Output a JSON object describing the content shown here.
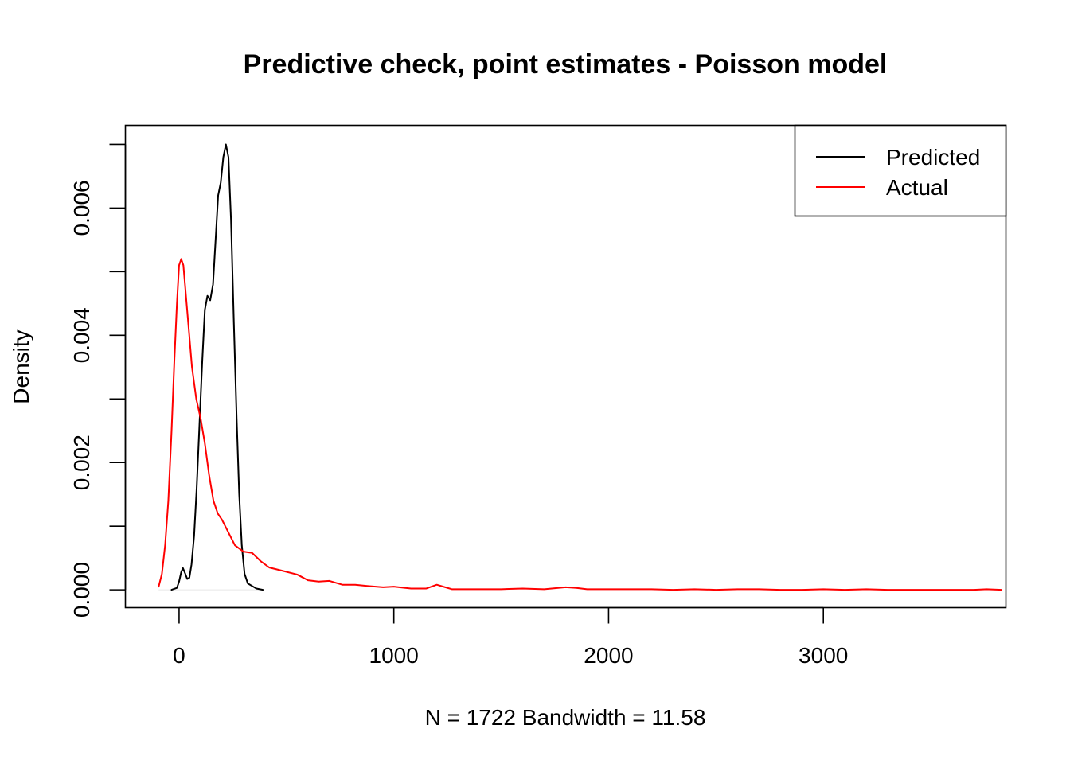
{
  "chart_data": {
    "type": "line",
    "title": "Predictive check, point estimates - Poisson model",
    "xlabel": "N = 1722   Bandwidth = 11.58",
    "ylabel": "Density",
    "xlim": [
      -250,
      3850
    ],
    "ylim": [
      -0.00028,
      0.0073
    ],
    "x_ticks": [
      0,
      1000,
      2000,
      3000
    ],
    "x_tick_labels": [
      "0",
      "1000",
      "2000",
      "3000"
    ],
    "y_ticks": [
      0,
      0.001,
      0.002,
      0.003,
      0.004,
      0.005,
      0.006,
      0.007
    ],
    "y_tick_labels": [
      "0.000",
      "",
      "0.002",
      "",
      "0.004",
      "",
      "0.006",
      ""
    ],
    "grid": false,
    "legend_position": "top-right",
    "series": [
      {
        "name": "Predicted",
        "color": "#000000",
        "points": [
          [
            -35,
            0
          ],
          [
            -10,
            3e-05
          ],
          [
            0,
            0.00013
          ],
          [
            10,
            0.00028
          ],
          [
            18,
            0.00034
          ],
          [
            28,
            0.00026
          ],
          [
            38,
            0.00017
          ],
          [
            48,
            0.00019
          ],
          [
            58,
            0.0004
          ],
          [
            70,
            0.00085
          ],
          [
            82,
            0.0016
          ],
          [
            95,
            0.0026
          ],
          [
            108,
            0.0036
          ],
          [
            120,
            0.0044
          ],
          [
            132,
            0.00462
          ],
          [
            145,
            0.00455
          ],
          [
            158,
            0.0048
          ],
          [
            170,
            0.0055
          ],
          [
            182,
            0.0062
          ],
          [
            194,
            0.0064
          ],
          [
            206,
            0.0068
          ],
          [
            218,
            0.007
          ],
          [
            230,
            0.0068
          ],
          [
            242,
            0.0058
          ],
          [
            255,
            0.0042
          ],
          [
            268,
            0.0027
          ],
          [
            280,
            0.0015
          ],
          [
            292,
            0.0007
          ],
          [
            305,
            0.00025
          ],
          [
            320,
            0.0001
          ],
          [
            340,
            6e-05
          ],
          [
            360,
            2e-05
          ],
          [
            390,
            0
          ]
        ]
      },
      {
        "name": "Actual",
        "color": "#ff0000",
        "points": [
          [
            -95,
            5e-05
          ],
          [
            -80,
            0.00025
          ],
          [
            -65,
            0.0007
          ],
          [
            -50,
            0.0014
          ],
          [
            -35,
            0.0025
          ],
          [
            -22,
            0.0036
          ],
          [
            -10,
            0.0045
          ],
          [
            0,
            0.0051
          ],
          [
            10,
            0.0052
          ],
          [
            20,
            0.0051
          ],
          [
            30,
            0.0047
          ],
          [
            45,
            0.0041
          ],
          [
            60,
            0.0035
          ],
          [
            80,
            0.003
          ],
          [
            100,
            0.0027
          ],
          [
            120,
            0.0023
          ],
          [
            140,
            0.0018
          ],
          [
            160,
            0.0014
          ],
          [
            180,
            0.0012
          ],
          [
            200,
            0.0011
          ],
          [
            230,
            0.0009
          ],
          [
            260,
            0.0007
          ],
          [
            300,
            0.0006
          ],
          [
            340,
            0.00058
          ],
          [
            380,
            0.00045
          ],
          [
            420,
            0.00035
          ],
          [
            480,
            0.0003
          ],
          [
            550,
            0.00024
          ],
          [
            600,
            0.00015
          ],
          [
            650,
            0.00013
          ],
          [
            700,
            0.00014
          ],
          [
            760,
            8e-05
          ],
          [
            820,
            8e-05
          ],
          [
            880,
            6e-05
          ],
          [
            950,
            4e-05
          ],
          [
            1000,
            5e-05
          ],
          [
            1080,
            2e-05
          ],
          [
            1150,
            2e-05
          ],
          [
            1200,
            8e-05
          ],
          [
            1230,
            5e-05
          ],
          [
            1270,
            1e-05
          ],
          [
            1400,
            1e-05
          ],
          [
            1500,
            1e-05
          ],
          [
            1600,
            2e-05
          ],
          [
            1700,
            1e-05
          ],
          [
            1800,
            4e-05
          ],
          [
            1850,
            3e-05
          ],
          [
            1900,
            1e-05
          ],
          [
            2000,
            1e-05
          ],
          [
            2100,
            1e-05
          ],
          [
            2200,
            1e-05
          ],
          [
            2300,
            0.0
          ],
          [
            2400,
            1e-05
          ],
          [
            2500,
            0.0
          ],
          [
            2600,
            1e-05
          ],
          [
            2700,
            1e-05
          ],
          [
            2800,
            0.0
          ],
          [
            2900,
            0.0
          ],
          [
            3000,
            1e-05
          ],
          [
            3100,
            0.0
          ],
          [
            3200,
            1e-05
          ],
          [
            3300,
            0.0
          ],
          [
            3400,
            0.0
          ],
          [
            3500,
            0.0
          ],
          [
            3600,
            0.0
          ],
          [
            3700,
            0.0
          ],
          [
            3760,
            1e-05
          ],
          [
            3830,
            0.0
          ]
        ]
      }
    ]
  }
}
